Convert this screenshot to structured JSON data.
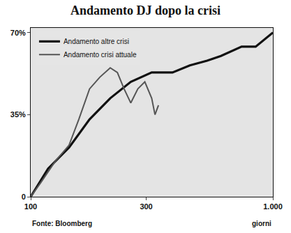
{
  "chart_data": {
    "type": "line",
    "title": "Andamento DJ dopo la crisi",
    "x_label": "giorni",
    "source": "Fonte: Bloomberg",
    "log": "x",
    "grid": false,
    "legend": "top left",
    "xlim": [
      100,
      1000
    ],
    "xticks": [
      100,
      300,
      {
        "value": 1000,
        "label": "1.000"
      }
    ],
    "ylim": [
      0,
      72
    ],
    "yticks": [
      0,
      {
        "value": 35,
        "label": "35%"
      },
      {
        "value": 70,
        "label": "70%"
      }
    ],
    "series": [
      {
        "name": "Andamento altre crisi",
        "color": "#111111",
        "line_style": "solid",
        "x": [
          100,
          118,
          144,
          175,
          213,
          259,
          316,
          385,
          454,
          535,
          610,
          743,
          849,
          1000
        ],
        "values": [
          0,
          12,
          21,
          33,
          42,
          49,
          53,
          53,
          56,
          58,
          60,
          64,
          64,
          70
        ]
      },
      {
        "name": "Andamento crisi attuale",
        "color": "#555555",
        "line_style": "solid",
        "x": [
          100,
          110,
          126,
          144,
          158,
          175,
          193,
          213,
          228,
          243,
          259,
          277,
          296,
          316,
          326,
          337
        ],
        "values": [
          0,
          6,
          15,
          22,
          33,
          46,
          51,
          55,
          53,
          46,
          40,
          46,
          49,
          42,
          35,
          39
        ]
      }
    ]
  }
}
